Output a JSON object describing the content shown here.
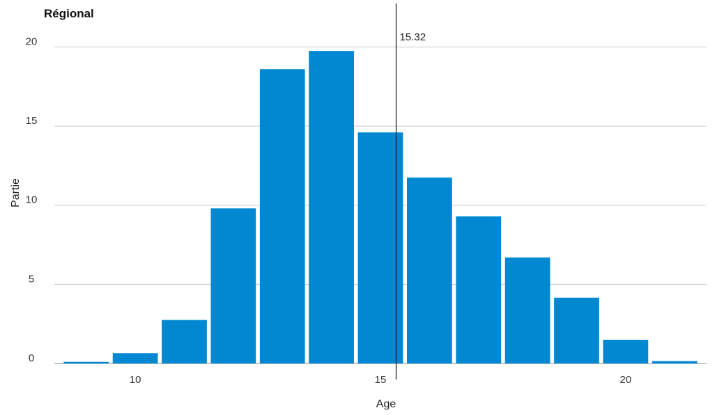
{
  "chart_data": {
    "type": "bar",
    "title": "Régional",
    "xlabel": "Age",
    "ylabel": "Partie",
    "bar_color": "#0288D1",
    "x": [
      9,
      10,
      11,
      12,
      13,
      14,
      15,
      16,
      17,
      18,
      19,
      20,
      21
    ],
    "values": [
      0.1,
      0.65,
      2.75,
      9.8,
      18.6,
      19.75,
      14.6,
      11.75,
      9.3,
      6.7,
      4.15,
      1.5,
      0.15
    ],
    "xlim": [
      8.35,
      21.65
    ],
    "ylim": [
      0,
      22
    ],
    "x_ticks": [
      10,
      15,
      20
    ],
    "y_ticks": [
      0,
      5,
      10,
      15,
      20
    ],
    "grid": "horizontal",
    "reference_line": {
      "x": 15.32,
      "label": "15.32"
    }
  }
}
